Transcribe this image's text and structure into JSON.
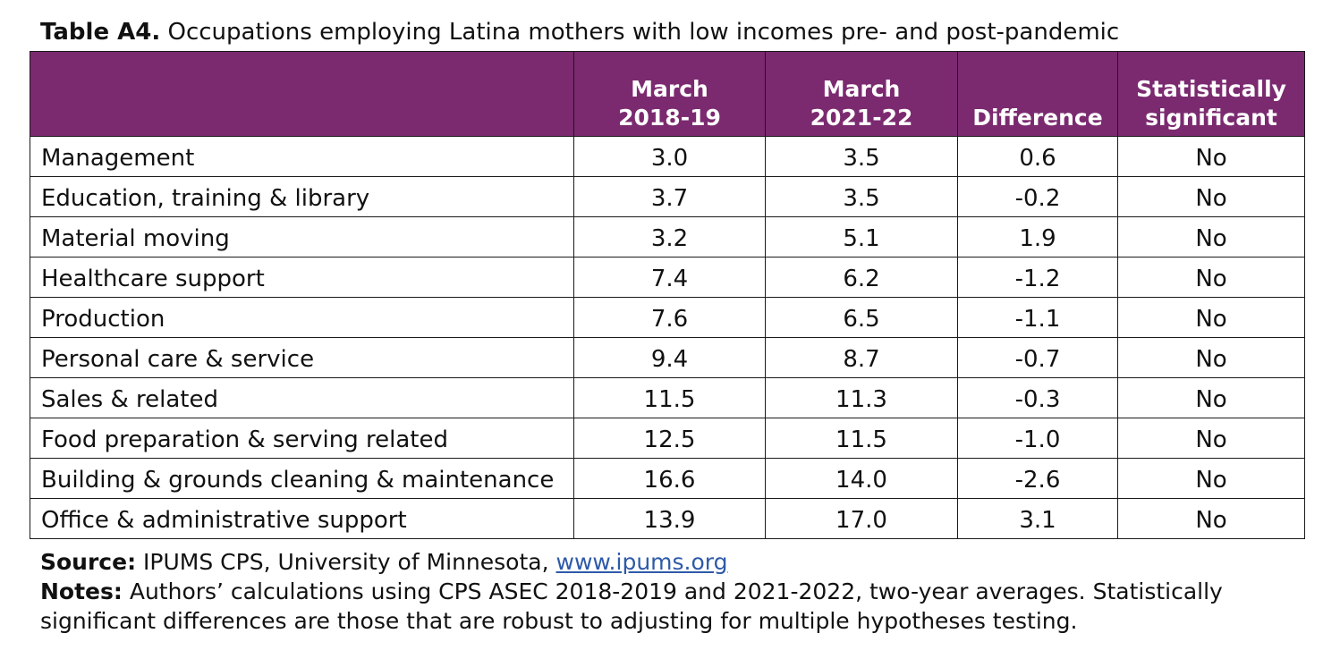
{
  "title": {
    "lead": "Table A4.",
    "text": "Occupations employing Latina mothers with low incomes pre- and post-pandemic"
  },
  "table": {
    "headers": [
      {
        "line1": "",
        "line2": ""
      },
      {
        "line1": "March",
        "line2": "2018-19"
      },
      {
        "line1": "March",
        "line2": "2021-22"
      },
      {
        "line1": "",
        "line2": "Difference"
      },
      {
        "line1": "Statistically",
        "line2": "significant"
      }
    ],
    "rows": [
      {
        "occupation": "Management",
        "y2018_19": "3.0",
        "y2021_22": "3.5",
        "difference": "0.6",
        "significant": "No"
      },
      {
        "occupation": "Education, training & library",
        "y2018_19": "3.7",
        "y2021_22": "3.5",
        "difference": "-0.2",
        "significant": "No"
      },
      {
        "occupation": "Material moving",
        "y2018_19": "3.2",
        "y2021_22": "5.1",
        "difference": "1.9",
        "significant": "No"
      },
      {
        "occupation": "Healthcare support",
        "y2018_19": "7.4",
        "y2021_22": "6.2",
        "difference": "-1.2",
        "significant": "No"
      },
      {
        "occupation": "Production",
        "y2018_19": "7.6",
        "y2021_22": "6.5",
        "difference": "-1.1",
        "significant": "No"
      },
      {
        "occupation": "Personal care & service",
        "y2018_19": "9.4",
        "y2021_22": "8.7",
        "difference": "-0.7",
        "significant": "No"
      },
      {
        "occupation": "Sales & related",
        "y2018_19": "11.5",
        "y2021_22": "11.3",
        "difference": "-0.3",
        "significant": "No"
      },
      {
        "occupation": "Food preparation & serving related",
        "y2018_19": "12.5",
        "y2021_22": "11.5",
        "difference": "-1.0",
        "significant": "No"
      },
      {
        "occupation": "Building & grounds cleaning & maintenance",
        "y2018_19": "16.6",
        "y2021_22": "14.0",
        "difference": "-2.6",
        "significant": "No"
      },
      {
        "occupation": "Office & administrative support",
        "y2018_19": "13.9",
        "y2021_22": "17.0",
        "difference": "3.1",
        "significant": "No"
      }
    ]
  },
  "source": {
    "lead": "Source:",
    "text": "IPUMS CPS, University of Minnesota,",
    "link": "www.ipums.org"
  },
  "notes": {
    "lead": "Notes:",
    "text": "Authors’ calculations using CPS ASEC 2018-2019 and 2021-2022, two-year averages. Statistically significant differences are those that are robust to adjusting for multiple hypotheses testing."
  },
  "colors": {
    "header_bg": "#7b2a70",
    "header_text": "#ffffff",
    "link": "#2e5aa8"
  }
}
